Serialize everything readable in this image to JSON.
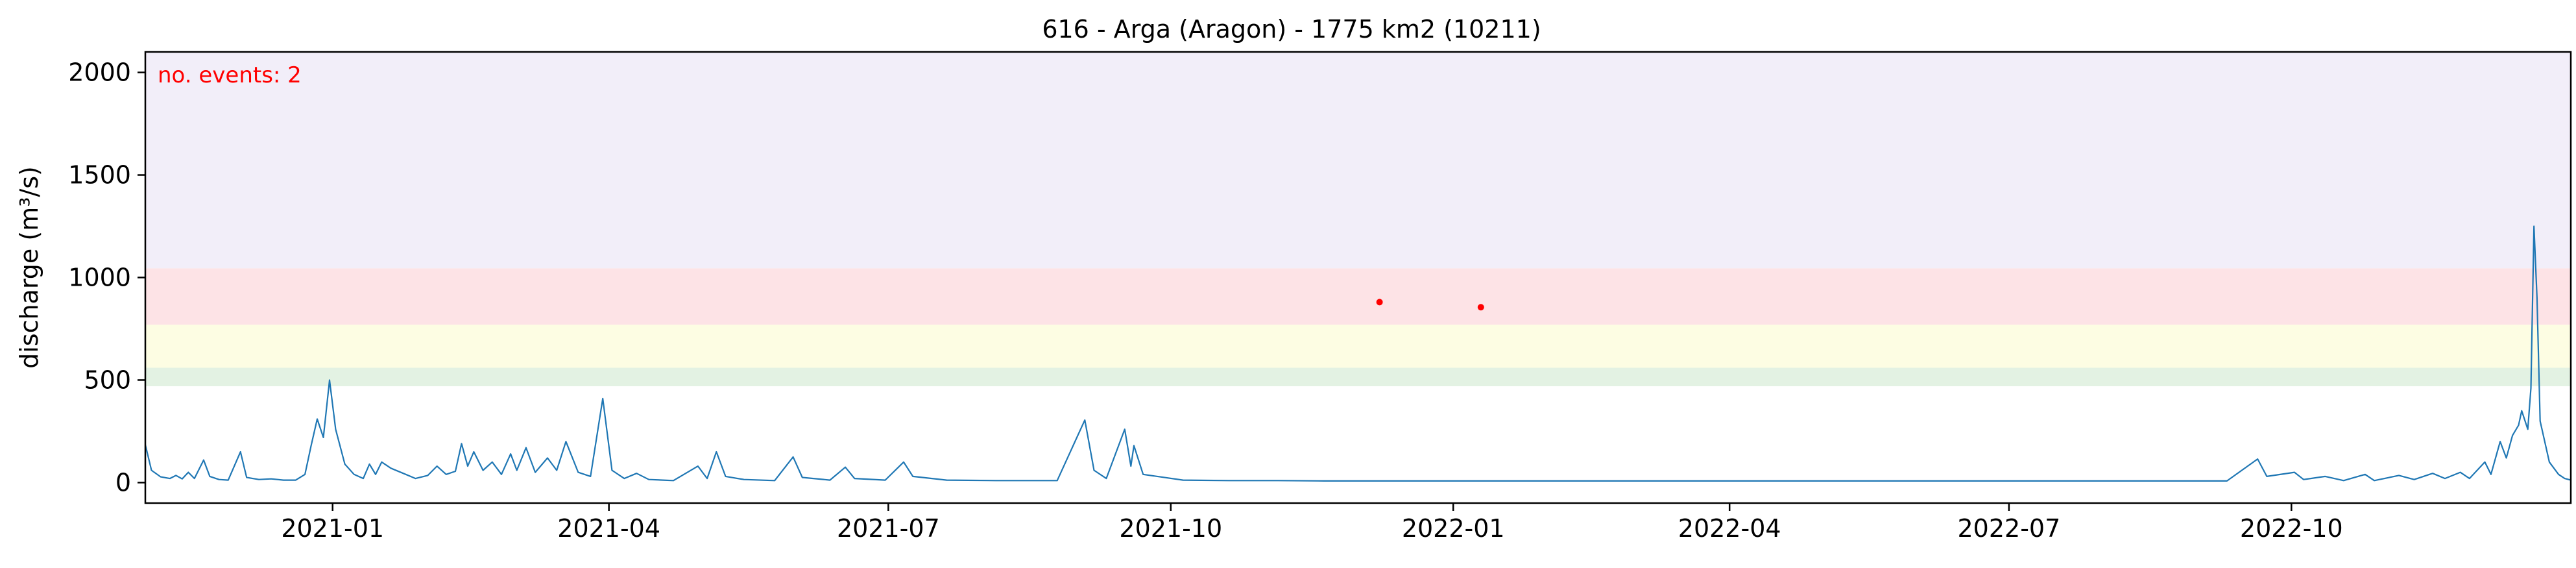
{
  "chart_data": {
    "type": "line",
    "title": "616 - Arga (Aragon) - 1775 km2 (10211)",
    "xlabel": "",
    "ylabel": "discharge (m³/s)",
    "annotation": "no. events: 2",
    "xlim": [
      "2020-11-01",
      "2022-12-31"
    ],
    "ylim": [
      -100,
      2100
    ],
    "x_ticks": [
      "2021-01",
      "2021-04",
      "2021-07",
      "2021-10",
      "2022-01",
      "2022-04",
      "2022-07",
      "2022-10"
    ],
    "y_ticks": [
      0,
      500,
      1000,
      1500,
      2000
    ],
    "grid": false,
    "line_color": "#1f77b4",
    "event_color": "#ff0000",
    "threshold_bands": [
      {
        "from": 470,
        "to": 560,
        "color": "#e3f2e3"
      },
      {
        "from": 560,
        "to": 770,
        "color": "#fdfde3"
      },
      {
        "from": 770,
        "to": 1045,
        "color": "#fde3e6"
      },
      {
        "from": 1045,
        "to": 2100,
        "color": "#f2eef9"
      }
    ],
    "events": [
      {
        "x": "2021-12-08",
        "y": 880
      },
      {
        "x": "2022-01-10",
        "y": 855
      }
    ],
    "series": [
      {
        "points": [
          [
            "2020-11-01",
            185
          ],
          [
            "2020-11-03",
            60
          ],
          [
            "2020-11-06",
            28
          ],
          [
            "2020-11-09",
            20
          ],
          [
            "2020-11-11",
            35
          ],
          [
            "2020-11-13",
            18
          ],
          [
            "2020-11-15",
            50
          ],
          [
            "2020-11-17",
            20
          ],
          [
            "2020-11-20",
            110
          ],
          [
            "2020-11-22",
            30
          ],
          [
            "2020-11-25",
            15
          ],
          [
            "2020-11-28",
            12
          ],
          [
            "2020-12-02",
            150
          ],
          [
            "2020-12-04",
            25
          ],
          [
            "2020-12-08",
            15
          ],
          [
            "2020-12-12",
            18
          ],
          [
            "2020-12-16",
            12
          ],
          [
            "2020-12-20",
            12
          ],
          [
            "2020-12-23",
            40
          ],
          [
            "2020-12-25",
            180
          ],
          [
            "2020-12-27",
            310
          ],
          [
            "2020-12-29",
            220
          ],
          [
            "2020-12-31",
            500
          ],
          [
            "2021-01-02",
            260
          ],
          [
            "2021-01-05",
            90
          ],
          [
            "2021-01-08",
            40
          ],
          [
            "2021-01-11",
            20
          ],
          [
            "2021-01-13",
            90
          ],
          [
            "2021-01-15",
            40
          ],
          [
            "2021-01-17",
            100
          ],
          [
            "2021-01-20",
            70
          ],
          [
            "2021-01-24",
            45
          ],
          [
            "2021-01-28",
            20
          ],
          [
            "2021-02-01",
            35
          ],
          [
            "2021-02-04",
            80
          ],
          [
            "2021-02-07",
            40
          ],
          [
            "2021-02-10",
            55
          ],
          [
            "2021-02-12",
            190
          ],
          [
            "2021-02-14",
            80
          ],
          [
            "2021-02-16",
            150
          ],
          [
            "2021-02-19",
            60
          ],
          [
            "2021-02-22",
            100
          ],
          [
            "2021-02-25",
            40
          ],
          [
            "2021-02-28",
            140
          ],
          [
            "2021-03-02",
            60
          ],
          [
            "2021-03-05",
            170
          ],
          [
            "2021-03-08",
            50
          ],
          [
            "2021-03-12",
            120
          ],
          [
            "2021-03-15",
            60
          ],
          [
            "2021-03-18",
            200
          ],
          [
            "2021-03-22",
            50
          ],
          [
            "2021-03-26",
            30
          ],
          [
            "2021-03-30",
            410
          ],
          [
            "2021-04-02",
            60
          ],
          [
            "2021-04-06",
            20
          ],
          [
            "2021-04-10",
            45
          ],
          [
            "2021-04-14",
            15
          ],
          [
            "2021-04-22",
            10
          ],
          [
            "2021-04-30",
            80
          ],
          [
            "2021-05-03",
            20
          ],
          [
            "2021-05-06",
            150
          ],
          [
            "2021-05-09",
            30
          ],
          [
            "2021-05-15",
            15
          ],
          [
            "2021-05-25",
            10
          ],
          [
            "2021-05-31",
            125
          ],
          [
            "2021-06-03",
            25
          ],
          [
            "2021-06-12",
            12
          ],
          [
            "2021-06-17",
            75
          ],
          [
            "2021-06-20",
            20
          ],
          [
            "2021-06-30",
            12
          ],
          [
            "2021-07-06",
            100
          ],
          [
            "2021-07-09",
            30
          ],
          [
            "2021-07-20",
            12
          ],
          [
            "2021-08-05",
            10
          ],
          [
            "2021-08-25",
            10
          ],
          [
            "2021-09-03",
            305
          ],
          [
            "2021-09-06",
            60
          ],
          [
            "2021-09-10",
            20
          ],
          [
            "2021-09-16",
            260
          ],
          [
            "2021-09-18",
            80
          ],
          [
            "2021-09-19",
            180
          ],
          [
            "2021-09-22",
            40
          ],
          [
            "2021-10-05",
            12
          ],
          [
            "2021-10-20",
            10
          ],
          [
            "2021-11-05",
            10
          ],
          [
            "2021-11-20",
            8
          ],
          [
            "2021-12-10",
            8
          ],
          [
            "2022-01-10",
            8
          ],
          [
            "2022-02-10",
            8
          ],
          [
            "2022-03-10",
            8
          ],
          [
            "2022-04-10",
            8
          ],
          [
            "2022-05-10",
            8
          ],
          [
            "2022-06-10",
            8
          ],
          [
            "2022-07-10",
            8
          ],
          [
            "2022-08-10",
            8
          ],
          [
            "2022-09-10",
            8
          ],
          [
            "2022-09-20",
            115
          ],
          [
            "2022-09-23",
            30
          ],
          [
            "2022-10-02",
            50
          ],
          [
            "2022-10-05",
            15
          ],
          [
            "2022-10-12",
            30
          ],
          [
            "2022-10-18",
            10
          ],
          [
            "2022-10-25",
            40
          ],
          [
            "2022-10-28",
            10
          ],
          [
            "2022-11-05",
            35
          ],
          [
            "2022-11-10",
            15
          ],
          [
            "2022-11-16",
            45
          ],
          [
            "2022-11-20",
            20
          ],
          [
            "2022-11-25",
            50
          ],
          [
            "2022-11-28",
            20
          ],
          [
            "2022-12-03",
            100
          ],
          [
            "2022-12-05",
            40
          ],
          [
            "2022-12-08",
            200
          ],
          [
            "2022-12-10",
            120
          ],
          [
            "2022-12-12",
            230
          ],
          [
            "2022-12-14",
            280
          ],
          [
            "2022-12-15",
            350
          ],
          [
            "2022-12-17",
            260
          ],
          [
            "2022-12-18",
            460
          ],
          [
            "2022-12-19",
            1250
          ],
          [
            "2022-12-20",
            900
          ],
          [
            "2022-12-21",
            300
          ],
          [
            "2022-12-24",
            100
          ],
          [
            "2022-12-27",
            40
          ],
          [
            "2022-12-29",
            20
          ],
          [
            "2022-12-31",
            12
          ]
        ]
      }
    ]
  }
}
